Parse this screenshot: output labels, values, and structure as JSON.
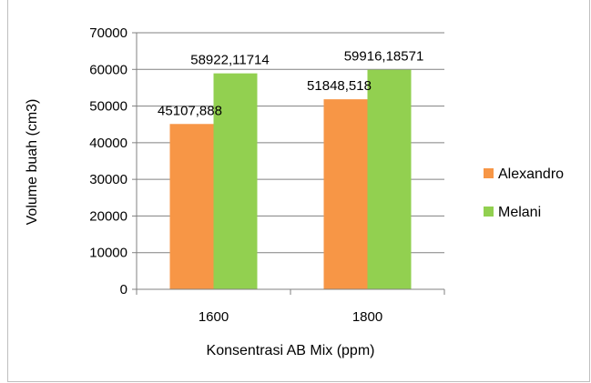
{
  "chart_data": {
    "type": "bar",
    "categories": [
      "1600",
      "1800"
    ],
    "series": [
      {
        "name": "Alexandro",
        "values": [
          45107.888,
          51848.518
        ],
        "labels": [
          "45107,888",
          "51848,518"
        ],
        "color": "#f79646"
      },
      {
        "name": "Melani",
        "values": [
          58922.11714,
          59916.18571
        ],
        "labels": [
          "58922,11714",
          "59916,18571"
        ],
        "color": "#92d050"
      }
    ],
    "title": "",
    "xlabel": "Konsentrasi AB Mix (ppm)",
    "ylabel": "Volume buah (cm3)",
    "ylim": [
      0,
      70000
    ],
    "yticks": [
      0,
      10000,
      20000,
      30000,
      40000,
      50000,
      60000,
      70000
    ],
    "grid": true,
    "legend_position": "right"
  }
}
